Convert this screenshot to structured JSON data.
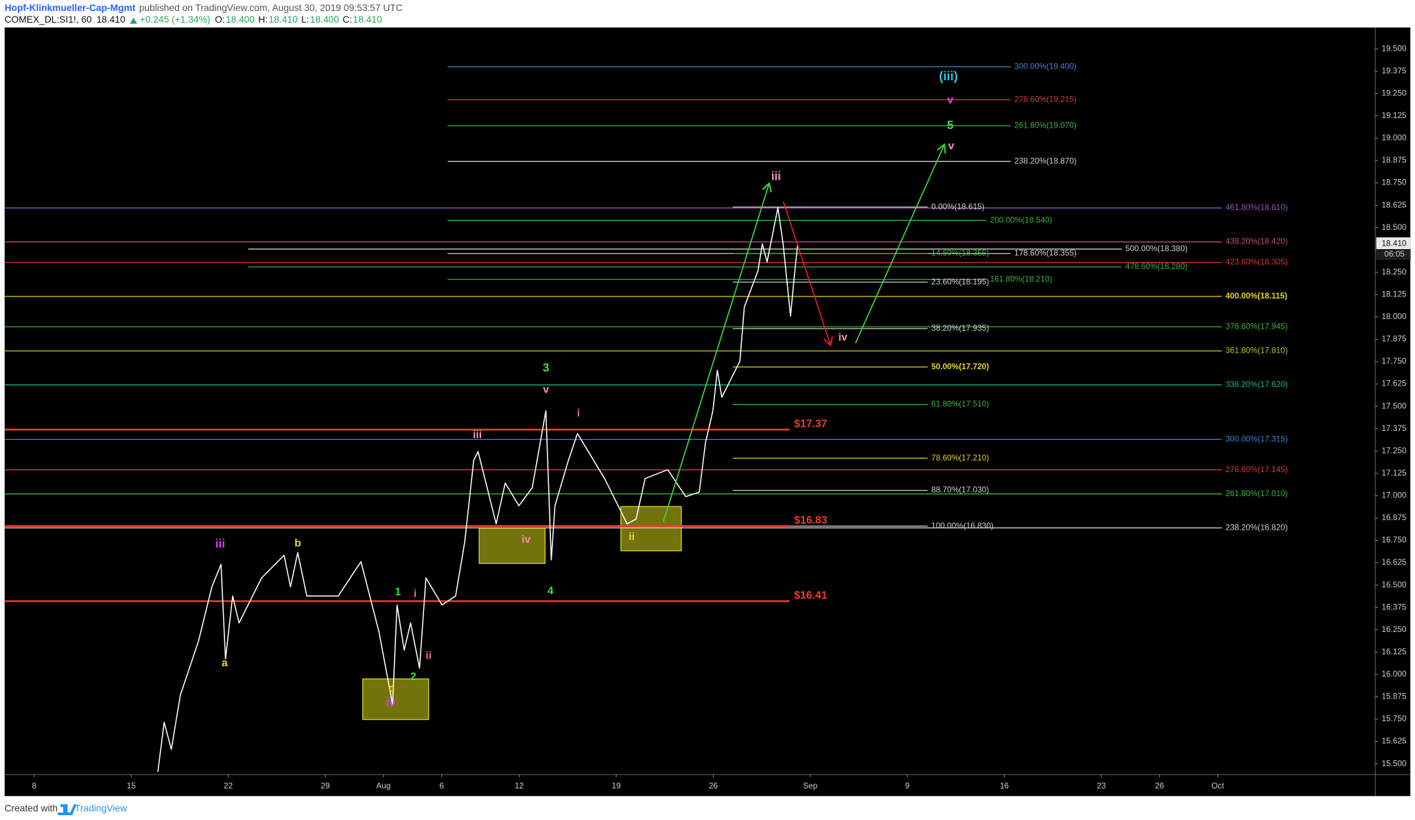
{
  "header": {
    "author": "Hopf-Klinkmueller-Cap-Mgmt",
    "published": "published on TradingView.com, August 30, 2019 09:53:57 UTC",
    "symbol": "COMEX_DL:SI1!, 60",
    "last": "18.410",
    "change": "+0.245 (+1.34%)",
    "ohlc": [
      {
        "label": "O:",
        "value": "18.400"
      },
      {
        "label": "H:",
        "value": "18.410"
      },
      {
        "label": "L:",
        "value": "18.400"
      },
      {
        "label": "C:",
        "value": "18.410"
      }
    ]
  },
  "chart_data": {
    "type": "line",
    "xlim": [
      -1.53,
      69.12
    ],
    "ylim": [
      15.44,
      19.6
    ],
    "xticks": [
      {
        "value": 0,
        "label": "8"
      },
      {
        "value": 5,
        "label": "15"
      },
      {
        "value": 10,
        "label": "22"
      },
      {
        "value": 15,
        "label": "29"
      },
      {
        "value": 18,
        "label": "Aug"
      },
      {
        "value": 21,
        "label": "6"
      },
      {
        "value": 25,
        "label": "12"
      },
      {
        "value": 30,
        "label": "19"
      },
      {
        "value": 35,
        "label": "26"
      },
      {
        "value": 40,
        "label": "Sep"
      },
      {
        "value": 45,
        "label": "9"
      },
      {
        "value": 50,
        "label": "16"
      },
      {
        "value": 55,
        "label": "23"
      },
      {
        "value": 58,
        "label": "26"
      },
      {
        "value": 61,
        "label": "Oct"
      }
    ],
    "yticks": [
      {
        "value": 19.5,
        "label": "19.500"
      },
      {
        "value": 19.375,
        "label": "19.375"
      },
      {
        "value": 19.25,
        "label": "19.250"
      },
      {
        "value": 19.125,
        "label": "19.125"
      },
      {
        "value": 19.0,
        "label": "19.000"
      },
      {
        "value": 18.875,
        "label": "18.875"
      },
      {
        "value": 18.75,
        "label": "18.750"
      },
      {
        "value": 18.625,
        "label": "18.625"
      },
      {
        "value": 18.5,
        "label": "18.500"
      },
      {
        "value": 18.375,
        "label": "18.375"
      },
      {
        "value": 18.25,
        "label": "18.250"
      },
      {
        "value": 18.125,
        "label": "18.125"
      },
      {
        "value": 18.0,
        "label": "18.000"
      },
      {
        "value": 17.875,
        "label": "17.875"
      },
      {
        "value": 17.75,
        "label": "17.750"
      },
      {
        "value": 17.625,
        "label": "17.625"
      },
      {
        "value": 17.5,
        "label": "17.500"
      },
      {
        "value": 17.375,
        "label": "17.375"
      },
      {
        "value": 17.25,
        "label": "17.250"
      },
      {
        "value": 17.125,
        "label": "17.125"
      },
      {
        "value": 17.0,
        "label": "17.000"
      },
      {
        "value": 16.875,
        "label": "16.875"
      },
      {
        "value": 16.75,
        "label": "16.750"
      },
      {
        "value": 16.625,
        "label": "16.625"
      },
      {
        "value": 16.5,
        "label": "16.500"
      },
      {
        "value": 16.375,
        "label": "16.375"
      },
      {
        "value": 16.25,
        "label": "16.250"
      },
      {
        "value": 16.125,
        "label": "16.125"
      },
      {
        "value": 16.0,
        "label": "16.000"
      },
      {
        "value": 15.875,
        "label": "15.875"
      },
      {
        "value": 15.75,
        "label": "15.750"
      },
      {
        "value": 15.625,
        "label": "15.625"
      },
      {
        "value": 15.5,
        "label": "15.500"
      }
    ],
    "series": [
      {
        "color": "#ffffff",
        "x": [
          6.37,
          6.7,
          7.07,
          7.53,
          8.0,
          8.47,
          9.16,
          9.63,
          9.86,
          10.23,
          10.56,
          11.72,
          12.88,
          13.21,
          13.58,
          14.05,
          15.67,
          16.84,
          17.77,
          18.47,
          18.7,
          19.07,
          19.4,
          19.86,
          20.19,
          21.02,
          21.72,
          22.19,
          22.65,
          22.88,
          23.81,
          24.28,
          24.98,
          25.67,
          26.37,
          26.65,
          26.84,
          27.53,
          28.0,
          29.4,
          30.56,
          31.02,
          31.49,
          32.65,
          33.58,
          34.28,
          34.6,
          34.98,
          35.21,
          35.44,
          36.37,
          36.6,
          37.3,
          37.53,
          37.77,
          38.33,
          38.6,
          38.98,
          39.16,
          39.35
        ],
        "values": [
          15.455,
          15.732,
          15.581,
          15.884,
          16.035,
          16.187,
          16.49,
          16.616,
          16.086,
          16.439,
          16.288,
          16.54,
          16.667,
          16.49,
          16.682,
          16.439,
          16.439,
          16.631,
          16.237,
          15.833,
          16.389,
          16.136,
          16.288,
          16.035,
          16.54,
          16.389,
          16.439,
          16.742,
          17.197,
          17.247,
          16.843,
          17.071,
          16.944,
          17.045,
          17.475,
          16.641,
          16.944,
          17.197,
          17.348,
          17.096,
          16.843,
          16.869,
          17.096,
          17.146,
          16.995,
          17.02,
          17.298,
          17.475,
          17.702,
          17.551,
          17.753,
          18.056,
          18.258,
          18.409,
          18.308,
          18.611,
          18.409,
          18.005,
          18.207,
          18.41
        ]
      }
    ],
    "last_price": {
      "value": 18.41,
      "label": "18.410",
      "countdown": "06:05"
    },
    "levels": [
      {
        "label": "300.00%(19.400)",
        "value": 19.4,
        "color": "#3f86cf"
      },
      {
        "label": "278.60%(19.215)",
        "value": 19.215,
        "color": "#d63a3a"
      },
      {
        "label": "261.80%(19.070)",
        "value": 19.07,
        "color": "#3cb43c"
      },
      {
        "label": "238.20%(18.870)",
        "value": 18.87,
        "color": "#d0d0d0"
      },
      {
        "label": "200.00%(18.540)",
        "value": 18.54,
        "color": "#3cb43c"
      },
      {
        "label": "178.60%(18.355)",
        "value": 18.355,
        "color": "#d0d0d0"
      },
      {
        "label": "161.80%(18.210)",
        "value": 18.21,
        "color": "#3cb43c"
      },
      {
        "label": "461.80%(18.610)",
        "value": 18.61,
        "color": "#9a55c4"
      },
      {
        "label": "438.20%(18.420)",
        "value": 18.42,
        "color": "#c84a82"
      },
      {
        "label": "423.60%(18.305)",
        "value": 18.305,
        "color": "#d63a3a"
      },
      {
        "label": "400.00%(18.115)",
        "value": 18.115,
        "color": "#e8d423"
      },
      {
        "label": "378.60%(17.945)",
        "value": 17.945,
        "color": "#3cb43c"
      },
      {
        "label": "361.80%(17.810)",
        "value": 17.81,
        "color": "#b5c22a"
      },
      {
        "label": "338.20%(17.620)",
        "value": 17.62,
        "color": "#26b39a"
      },
      {
        "label": "300.00%(17.315)",
        "value": 17.315,
        "color": "#3f86cf"
      },
      {
        "label": "278.60%(17.145)",
        "value": 17.145,
        "color": "#d63a3a"
      },
      {
        "label": "261.80%(17.010)",
        "value": 17.01,
        "color": "#3cb43c"
      },
      {
        "label": "238.20%(16.820)",
        "value": 16.82,
        "color": "#d0d0d0"
      },
      {
        "label": "500.00%(18.380)",
        "value": 18.38,
        "color": "#d0d0d0"
      },
      {
        "label": "478.60%(18.280)",
        "value": 18.28,
        "color": "#3cb43c"
      },
      {
        "label": "0.00%(18.615)",
        "value": 18.615,
        "color": "#d0d0d0"
      },
      {
        "label": "14.60%(18.355)",
        "value": 18.355,
        "color": "#3cb43c"
      },
      {
        "label": "23.60%(18.195)",
        "value": 18.195,
        "color": "#d0d0d0"
      },
      {
        "label": "38.20%(17.935)",
        "value": 17.935,
        "color": "#d0d0d0"
      },
      {
        "label": "50.00%(17.720)",
        "value": 17.72,
        "color": "#e8d423"
      },
      {
        "label": "61.80%(17.510)",
        "value": 17.51,
        "color": "#3cb43c"
      },
      {
        "label": "78.60%(17.210)",
        "value": 17.21,
        "color": "#e8d423"
      },
      {
        "label": "88.70%(17.030)",
        "value": 17.03,
        "color": "#d0d0d0"
      },
      {
        "label": "100.00%(16.830)",
        "value": 16.83,
        "color": "#d0d0d0"
      },
      {
        "label": "$17.37",
        "value": 17.37,
        "color": "#f03a2e"
      },
      {
        "label": "$16.83",
        "value": 16.83,
        "color": "#f03a2e"
      },
      {
        "label": "$16.41",
        "value": 16.41,
        "color": "#f03a2e"
      }
    ],
    "annotations": [
      {
        "text": "(iii)",
        "color": "#22c8e0"
      },
      {
        "text": "v",
        "color": "#e040fb"
      },
      {
        "text": "5",
        "color": "#44dd44"
      },
      {
        "text": "v",
        "color": "#f48fb1"
      },
      {
        "text": "iii",
        "color": "#f48fb1"
      },
      {
        "text": "iv",
        "color": "#f48fb1"
      },
      {
        "text": "3",
        "color": "#44dd44"
      },
      {
        "text": "v",
        "color": "#f48fb1"
      },
      {
        "text": "i",
        "color": "#f06292"
      },
      {
        "text": "iii",
        "color": "#f48fb1"
      },
      {
        "text": "iv",
        "color": "#f48fb1"
      },
      {
        "text": "4",
        "color": "#44dd44"
      },
      {
        "text": "ii",
        "color": "#f2d32e"
      },
      {
        "text": "iii",
        "color": "#d63af0"
      },
      {
        "text": "b",
        "color": "#f2d32e"
      },
      {
        "text": "a",
        "color": "#f2d32e"
      },
      {
        "text": "1",
        "color": "#44dd44"
      },
      {
        "text": "i",
        "color": "#f06292"
      },
      {
        "text": "ii",
        "color": "#f06292"
      },
      {
        "text": "2",
        "color": "#44dd44"
      },
      {
        "text": "c",
        "color": "#f2d32e"
      },
      {
        "text": "iv",
        "color": "#d63af0"
      }
    ]
  },
  "footer": {
    "created": "Created with",
    "brand": "TradingView"
  }
}
